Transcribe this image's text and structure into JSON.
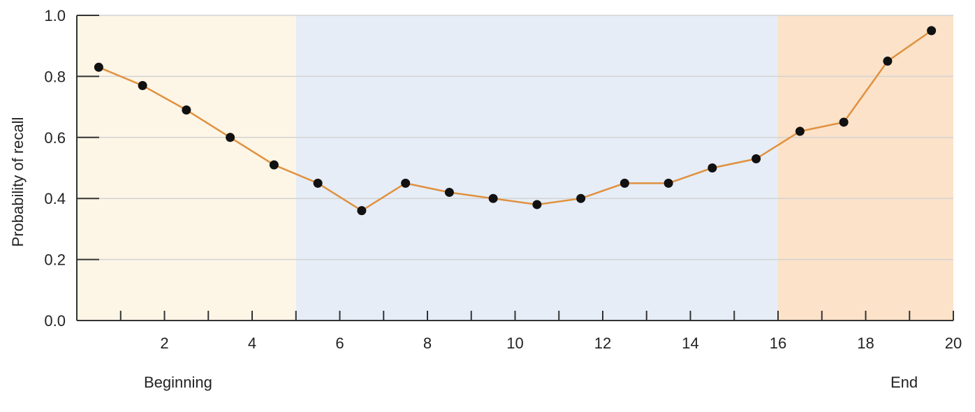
{
  "chart_data": {
    "type": "line",
    "title": "",
    "xlabel": "",
    "ylabel": "Probability of recall",
    "xlim": [
      0,
      20
    ],
    "ylim": [
      0,
      1.0
    ],
    "x_ticks": [
      2,
      4,
      6,
      8,
      10,
      12,
      14,
      16,
      18,
      20
    ],
    "y_ticks": [
      "0.0",
      "0.2",
      "0.4",
      "0.6",
      "0.8",
      "1.0"
    ],
    "grid": "horizontal",
    "series": [
      {
        "x": [
          0.5,
          1.5,
          2.5,
          3.5,
          4.5,
          5.5,
          6.5,
          7.5,
          8.5,
          9.5,
          10.5,
          11.5,
          12.5,
          13.5,
          14.5,
          15.5,
          16.5,
          17.5,
          18.5,
          19.5
        ],
        "values": [
          0.83,
          0.77,
          0.69,
          0.6,
          0.51,
          0.45,
          0.36,
          0.45,
          0.42,
          0.4,
          0.38,
          0.4,
          0.45,
          0.45,
          0.5,
          0.53,
          0.62,
          0.65,
          0.85,
          0.95
        ]
      }
    ],
    "regions": [
      {
        "label": "Beginning",
        "x_start": 0,
        "x_end": 5,
        "color": "#fdf5e6"
      },
      {
        "label": "",
        "x_start": 5,
        "x_end": 16,
        "color": "#e6edf7"
      },
      {
        "label": "End",
        "x_start": 16,
        "x_end": 20,
        "color": "#fbe2c9"
      }
    ],
    "line_color": "#e0913f",
    "marker_color": "#111111"
  }
}
